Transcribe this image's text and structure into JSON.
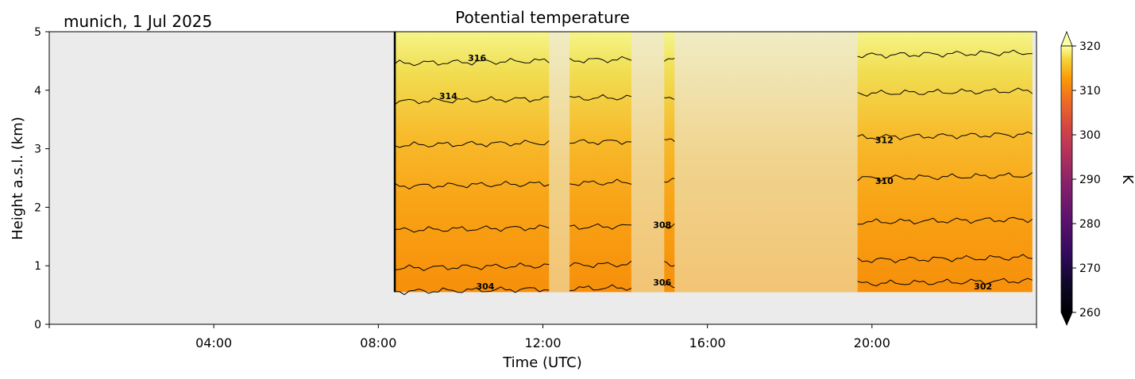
{
  "chart_data": {
    "type": "heatmap",
    "title": "Potential temperature",
    "location_label": "munich, 1 Jul 2025",
    "xlabel": "Time (UTC)",
    "ylabel": "Height a.s.l. (km)",
    "x_tick_labels": [
      "04:00",
      "08:00",
      "12:00",
      "16:00",
      "20:00"
    ],
    "x_tick_hours": [
      4,
      8,
      12,
      16,
      20
    ],
    "xlim_hours": [
      0,
      24
    ],
    "ylim": [
      0,
      5
    ],
    "y_ticks": [
      0,
      1,
      2,
      3,
      4,
      5
    ],
    "y_tick_labels": [
      "0",
      "1",
      "2",
      "3",
      "4",
      "5"
    ],
    "colorbar": {
      "label": "K",
      "range": [
        260,
        320
      ],
      "ticks": [
        260,
        270,
        280,
        290,
        300,
        310,
        320
      ],
      "tick_labels": [
        "260",
        "270",
        "280",
        "290",
        "300",
        "310",
        "320"
      ],
      "extend": "both",
      "colormap": "inferno"
    },
    "data_start_hour": 8.4,
    "data_end_hour": 23.9,
    "data_bottom_km": 0.55,
    "data_top_km": 5.0,
    "gap_intervals_hours": [
      [
        12.15,
        12.65
      ],
      [
        14.15,
        14.95
      ],
      [
        15.2,
        19.65
      ]
    ],
    "background_color": "#ebebeb",
    "contour_levels": [
      {
        "value": 304,
        "label": "304",
        "km": 0.65,
        "label_hour": 10.6
      },
      {
        "value": 306,
        "label": "306",
        "km": 1.05
      },
      {
        "value": 308,
        "label": "308",
        "km": 1.7,
        "label_hour": 14.9
      },
      {
        "value": 310,
        "label": "310",
        "km": 2.45,
        "label_hour": 20.3
      },
      {
        "value": 312,
        "label": "312",
        "km": 3.15,
        "label_hour": 20.3
      },
      {
        "value": 314,
        "label": "314",
        "km": 3.9,
        "label_hour": 9.7
      },
      {
        "value": 316,
        "label": "316",
        "km": 4.55,
        "label_hour": 10.4
      }
    ],
    "extra_contour_labels": [
      {
        "label": "306",
        "hour": 14.9,
        "km": 0.72
      },
      {
        "label": "302",
        "hour": 22.7,
        "km": 0.65
      }
    ]
  }
}
